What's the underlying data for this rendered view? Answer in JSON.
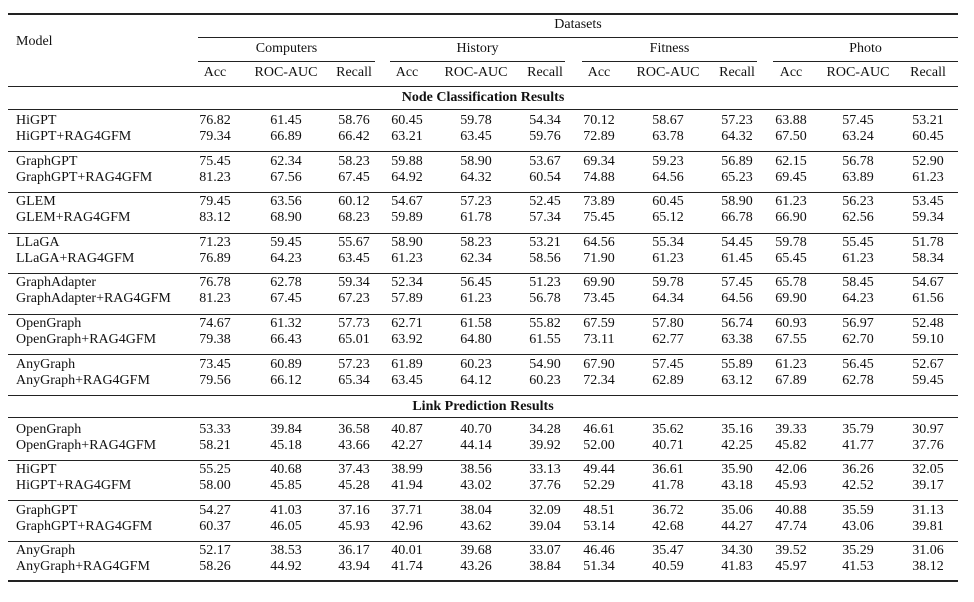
{
  "table": {
    "header": {
      "model": "Model",
      "datasets_label": "Datasets",
      "datasets": [
        {
          "name": "Computers",
          "metrics": [
            "Acc",
            "ROC-AUC",
            "Recall"
          ]
        },
        {
          "name": "History",
          "metrics": [
            "Acc",
            "ROC-AUC",
            "Recall"
          ]
        },
        {
          "name": "Fitness",
          "metrics": [
            "Acc",
            "ROC-AUC",
            "Recall"
          ]
        },
        {
          "name": "Photo",
          "metrics": [
            "Acc",
            "ROC-AUC",
            "Recall"
          ]
        }
      ]
    },
    "sections": [
      {
        "title": "Node Classification Results",
        "groups": [
          [
            {
              "model": "HiGPT",
              "values": [
                "76.82",
                "61.45",
                "58.76",
                "60.45",
                "59.78",
                "54.34",
                "70.12",
                "58.67",
                "57.23",
                "63.88",
                "57.45",
                "53.21"
              ]
            },
            {
              "model": "HiGPT+RAG4GFM",
              "values": [
                "79.34",
                "66.89",
                "66.42",
                "63.21",
                "63.45",
                "59.76",
                "72.89",
                "63.78",
                "64.32",
                "67.50",
                "63.24",
                "60.45"
              ]
            }
          ],
          [
            {
              "model": "GraphGPT",
              "values": [
                "75.45",
                "62.34",
                "58.23",
                "59.88",
                "58.90",
                "53.67",
                "69.34",
                "59.23",
                "56.89",
                "62.15",
                "56.78",
                "52.90"
              ]
            },
            {
              "model": "GraphGPT+RAG4GFM",
              "values": [
                "81.23",
                "67.56",
                "67.45",
                "64.92",
                "64.32",
                "60.54",
                "74.88",
                "64.56",
                "65.23",
                "69.45",
                "63.89",
                "61.23"
              ]
            }
          ],
          [
            {
              "model": "GLEM",
              "values": [
                "79.45",
                "63.56",
                "60.12",
                "54.67",
                "57.23",
                "52.45",
                "73.89",
                "60.45",
                "58.90",
                "61.23",
                "56.23",
                "53.45"
              ]
            },
            {
              "model": "GLEM+RAG4GFM",
              "values": [
                "83.12",
                "68.90",
                "68.23",
                "59.89",
                "61.78",
                "57.34",
                "75.45",
                "65.12",
                "66.78",
                "66.90",
                "62.56",
                "59.34"
              ]
            }
          ],
          [
            {
              "model": "LLaGA",
              "values": [
                "71.23",
                "59.45",
                "55.67",
                "58.90",
                "58.23",
                "53.21",
                "64.56",
                "55.34",
                "54.45",
                "59.78",
                "55.45",
                "51.78"
              ]
            },
            {
              "model": "LLaGA+RAG4GFM",
              "values": [
                "76.89",
                "64.23",
                "63.45",
                "61.23",
                "62.34",
                "58.56",
                "71.90",
                "61.23",
                "61.45",
                "65.45",
                "61.23",
                "58.34"
              ]
            }
          ],
          [
            {
              "model": "GraphAdapter",
              "values": [
                "76.78",
                "62.78",
                "59.34",
                "52.34",
                "56.45",
                "51.23",
                "69.90",
                "59.78",
                "57.45",
                "65.78",
                "58.45",
                "54.67"
              ]
            },
            {
              "model": "GraphAdapter+RAG4GFM",
              "values": [
                "81.23",
                "67.45",
                "67.23",
                "57.89",
                "61.23",
                "56.78",
                "73.45",
                "64.34",
                "64.56",
                "69.90",
                "64.23",
                "61.56"
              ]
            }
          ],
          [
            {
              "model": "OpenGraph",
              "values": [
                "74.67",
                "61.32",
                "57.73",
                "62.71",
                "61.58",
                "55.82",
                "67.59",
                "57.80",
                "56.74",
                "60.93",
                "56.97",
                "52.48"
              ]
            },
            {
              "model": "OpenGraph+RAG4GFM",
              "values": [
                "79.38",
                "66.43",
                "65.01",
                "63.92",
                "64.80",
                "61.55",
                "73.11",
                "62.77",
                "63.38",
                "67.55",
                "62.70",
                "59.10"
              ]
            }
          ],
          [
            {
              "model": "AnyGraph",
              "values": [
                "73.45",
                "60.89",
                "57.23",
                "61.89",
                "60.23",
                "54.90",
                "67.90",
                "57.45",
                "55.89",
                "61.23",
                "56.45",
                "52.67"
              ]
            },
            {
              "model": "AnyGraph+RAG4GFM",
              "values": [
                "79.56",
                "66.12",
                "65.34",
                "63.45",
                "64.12",
                "60.23",
                "72.34",
                "62.89",
                "63.12",
                "67.89",
                "62.78",
                "59.45"
              ]
            }
          ]
        ]
      },
      {
        "title": "Link Prediction Results",
        "groups": [
          [
            {
              "model": "OpenGraph",
              "values": [
                "53.33",
                "39.84",
                "36.58",
                "40.87",
                "40.70",
                "34.28",
                "46.61",
                "35.62",
                "35.16",
                "39.33",
                "35.79",
                "30.97"
              ]
            },
            {
              "model": "OpenGraph+RAG4GFM",
              "values": [
                "58.21",
                "45.18",
                "43.66",
                "42.27",
                "44.14",
                "39.92",
                "52.00",
                "40.71",
                "42.25",
                "45.82",
                "41.77",
                "37.76"
              ]
            }
          ],
          [
            {
              "model": "HiGPT",
              "values": [
                "55.25",
                "40.68",
                "37.43",
                "38.99",
                "38.56",
                "33.13",
                "49.44",
                "36.61",
                "35.90",
                "42.06",
                "36.26",
                "32.05"
              ]
            },
            {
              "model": "HiGPT+RAG4GFM",
              "values": [
                "58.00",
                "45.85",
                "45.28",
                "41.94",
                "43.02",
                "37.76",
                "52.29",
                "41.78",
                "43.18",
                "45.93",
                "42.52",
                "39.17"
              ]
            }
          ],
          [
            {
              "model": "GraphGPT",
              "values": [
                "54.27",
                "41.03",
                "37.16",
                "37.71",
                "38.04",
                "32.09",
                "48.51",
                "36.72",
                "35.06",
                "40.88",
                "35.59",
                "31.13"
              ]
            },
            {
              "model": "GraphGPT+RAG4GFM",
              "values": [
                "60.37",
                "46.05",
                "45.93",
                "42.96",
                "43.62",
                "39.04",
                "53.14",
                "42.68",
                "44.27",
                "47.74",
                "43.06",
                "39.81"
              ]
            }
          ],
          [
            {
              "model": "AnyGraph",
              "values": [
                "52.17",
                "38.53",
                "36.17",
                "40.01",
                "39.68",
                "33.07",
                "46.46",
                "35.47",
                "34.30",
                "39.52",
                "35.29",
                "31.06"
              ]
            },
            {
              "model": "AnyGraph+RAG4GFM",
              "values": [
                "58.26",
                "44.92",
                "43.94",
                "41.74",
                "43.26",
                "38.84",
                "51.34",
                "40.59",
                "41.83",
                "45.97",
                "41.53",
                "38.12"
              ]
            }
          ]
        ]
      }
    ]
  }
}
